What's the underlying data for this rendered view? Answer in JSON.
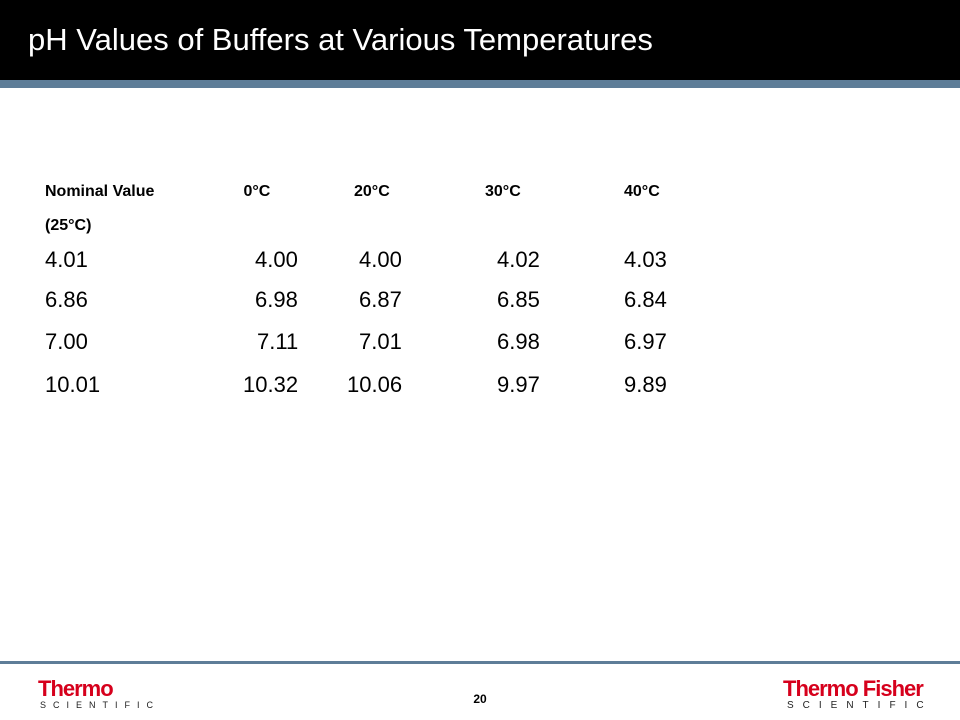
{
  "header": {
    "title": "pH Values of Buffers at Various Temperatures"
  },
  "table": {
    "columns": [
      "Nominal Value (25°C)",
      "0°C",
      "20°C",
      "30°C",
      "40°C"
    ],
    "rows": [
      [
        "4.01",
        "4.00",
        "4.00",
        "4.02",
        "4.03"
      ],
      [
        "6.86",
        "6.98",
        "6.87",
        "6.85",
        "6.84"
      ],
      [
        "7.00",
        "7.11",
        "7.01",
        "6.98",
        "6.97"
      ],
      [
        "10.01",
        "10.32",
        "10.06",
        "9.97",
        "9.89"
      ]
    ]
  },
  "footer": {
    "page_number": "20",
    "left_logo": {
      "brand": "Thermo",
      "subtitle": "SCIENTIFIC"
    },
    "right_logo": {
      "brand": "Thermo Fisher",
      "subtitle": "SCIENTIFIC"
    }
  }
}
